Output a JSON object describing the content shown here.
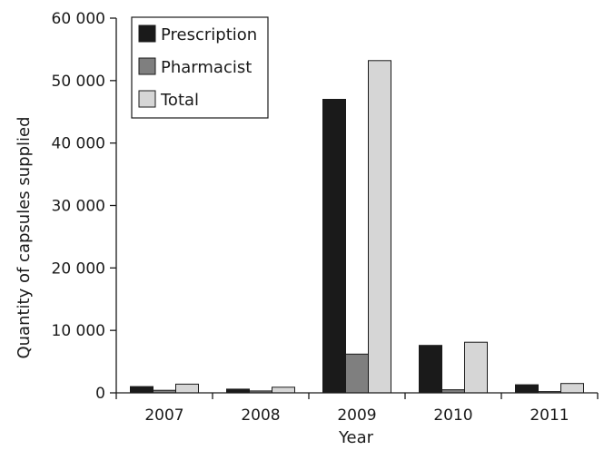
{
  "chart_data": {
    "type": "bar",
    "title": "",
    "xlabel": "Year",
    "ylabel": "Quantity of capsules supplied",
    "categories": [
      "2007",
      "2008",
      "2009",
      "2010",
      "2011"
    ],
    "series": [
      {
        "name": "Prescription",
        "color": "#1a1a1a",
        "values": [
          1000,
          600,
          47000,
          7600,
          1300
        ]
      },
      {
        "name": "Pharmacist",
        "color": "#7f7f7f",
        "values": [
          400,
          300,
          6200,
          500,
          200
        ]
      },
      {
        "name": "Total",
        "color": "#d6d6d6",
        "values": [
          1400,
          900,
          53200,
          8100,
          1500
        ]
      }
    ],
    "ylim": [
      0,
      60000
    ],
    "yticks": [
      0,
      10000,
      20000,
      30000,
      40000,
      50000,
      60000
    ],
    "ytick_labels": [
      "0",
      "10 000",
      "20 000",
      "30 000",
      "40 000",
      "50 000",
      "60 000"
    ],
    "legend_position": "top-left",
    "grid": false
  }
}
